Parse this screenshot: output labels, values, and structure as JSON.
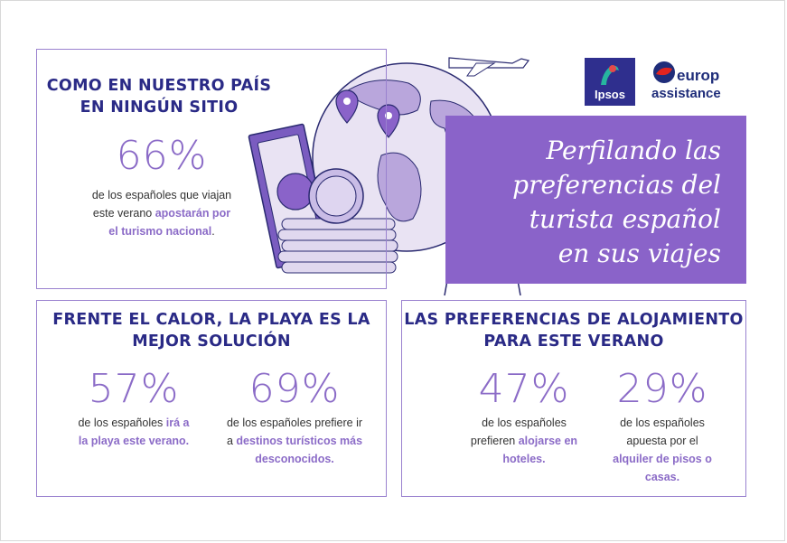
{
  "section1": {
    "heading": [
      "COMO EN NUESTRO PAÍS",
      "EN NINGÚN SITIO"
    ],
    "stat": "66%",
    "line1": "de los españoles que viajan",
    "line2_plain": "este verano ",
    "line2_hl": "apostarán por",
    "line3_hl": "el turismo nacional",
    "line3_end": "."
  },
  "banner": {
    "title_lines": [
      "Perfilando las",
      "preferencias del",
      "turista español",
      "en sus viajes"
    ],
    "color": "#8a63c9"
  },
  "logos": {
    "ipsos": "Ipsos",
    "europ": "europ",
    "assistance": "assistance"
  },
  "section2": {
    "heading": [
      "FRENTE EL CALOR, LA PLAYA ES LA",
      "MEJOR SOLUCIÓN"
    ],
    "stat_a": "57%",
    "a_line1_plain": "de los españoles ",
    "a_line1_hl": "irá a",
    "a_line2_hl": "la playa este verano.",
    "stat_b": "69%",
    "b_line1": "de los españoles prefiere ir",
    "b_line2_plain": "a ",
    "b_line2_hl": "destinos turísticos más",
    "b_line3_hl": "desconocidos."
  },
  "section3": {
    "heading": [
      "LAS PREFERENCIAS DE ALOJAMIENTO",
      "PARA ESTE VERANO"
    ],
    "stat_a": "47%",
    "a_line1": "de los españoles",
    "a_line2_plain": "prefieren ",
    "a_line2_hl": "alojarse en",
    "a_line3_hl": "hoteles.",
    "stat_b": "29%",
    "b_line1": "de los españoles",
    "b_line2": "apuesta por el",
    "b_line3_hl": "alquiler de pisos o",
    "b_line4_hl": "casas."
  },
  "colors": {
    "accent": "#8b6bc7",
    "heading": "#2a2a86",
    "border": "#9a82cf"
  }
}
